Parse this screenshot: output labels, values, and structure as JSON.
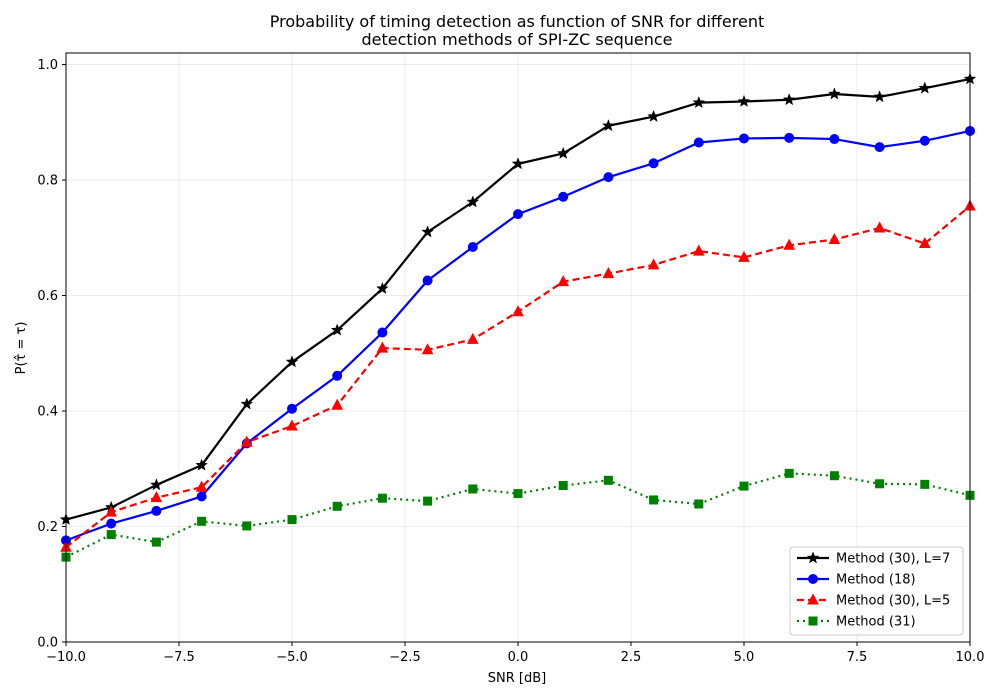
{
  "chart_data": {
    "type": "line",
    "title": [
      "Probability of timing detection as function of SNR for different",
      "detection methods of SPI-ZC sequence"
    ],
    "xlabel": "SNR [dB]",
    "ylabel": "P(τ̂ = τ)",
    "xlim": [
      -10,
      10
    ],
    "ylim": [
      0,
      1.02
    ],
    "xticks": [
      -10,
      -7.5,
      -5,
      -2.5,
      0,
      2.5,
      5,
      7.5,
      10
    ],
    "xtick_labels": [
      "−10.0",
      "−7.5",
      "−5.0",
      "−2.5",
      "0.0",
      "2.5",
      "5.0",
      "7.5",
      "10.0"
    ],
    "yticks": [
      0,
      0.2,
      0.4,
      0.6,
      0.8,
      1.0
    ],
    "ytick_labels": [
      "0.0",
      "0.2",
      "0.4",
      "0.6",
      "0.8",
      "1.0"
    ],
    "grid": true,
    "legend_position": "bottom-right",
    "x": [
      -10,
      -9,
      -8,
      -7,
      -6,
      -5,
      -4,
      -3,
      -2,
      -1,
      0,
      1,
      2,
      3,
      4,
      5,
      6,
      7,
      8,
      9,
      10
    ],
    "series": [
      {
        "name": "Method (30), L=7",
        "color": "#000000",
        "line_style": "solid",
        "marker": "star",
        "values": [
          0.212,
          0.233,
          0.272,
          0.306,
          0.412,
          0.485,
          0.54,
          0.612,
          0.71,
          0.762,
          0.828,
          0.846,
          0.894,
          0.91,
          0.934,
          0.936,
          0.939,
          0.949,
          0.944,
          0.959,
          0.975
        ]
      },
      {
        "name": "Method (18)",
        "color": "#0000ff",
        "line_style": "solid",
        "marker": "circle",
        "values": [
          0.176,
          0.205,
          0.227,
          0.252,
          0.344,
          0.404,
          0.461,
          0.536,
          0.626,
          0.684,
          0.741,
          0.771,
          0.805,
          0.829,
          0.865,
          0.872,
          0.873,
          0.871,
          0.857,
          0.868,
          0.885
        ]
      },
      {
        "name": "Method (30), L=5",
        "color": "#ff0000",
        "line_style": "dashed",
        "marker": "triangle",
        "values": [
          0.164,
          0.225,
          0.25,
          0.268,
          0.346,
          0.374,
          0.41,
          0.509,
          0.506,
          0.524,
          0.572,
          0.624,
          0.638,
          0.653,
          0.677,
          0.666,
          0.687,
          0.697,
          0.717,
          0.69,
          0.755
        ]
      },
      {
        "name": "Method (31)",
        "color": "#008000",
        "line_style": "dotted",
        "marker": "square",
        "values": [
          0.147,
          0.186,
          0.173,
          0.209,
          0.201,
          0.212,
          0.235,
          0.249,
          0.244,
          0.265,
          0.257,
          0.271,
          0.28,
          0.246,
          0.239,
          0.27,
          0.292,
          0.288,
          0.274,
          0.273,
          0.254
        ]
      }
    ]
  }
}
